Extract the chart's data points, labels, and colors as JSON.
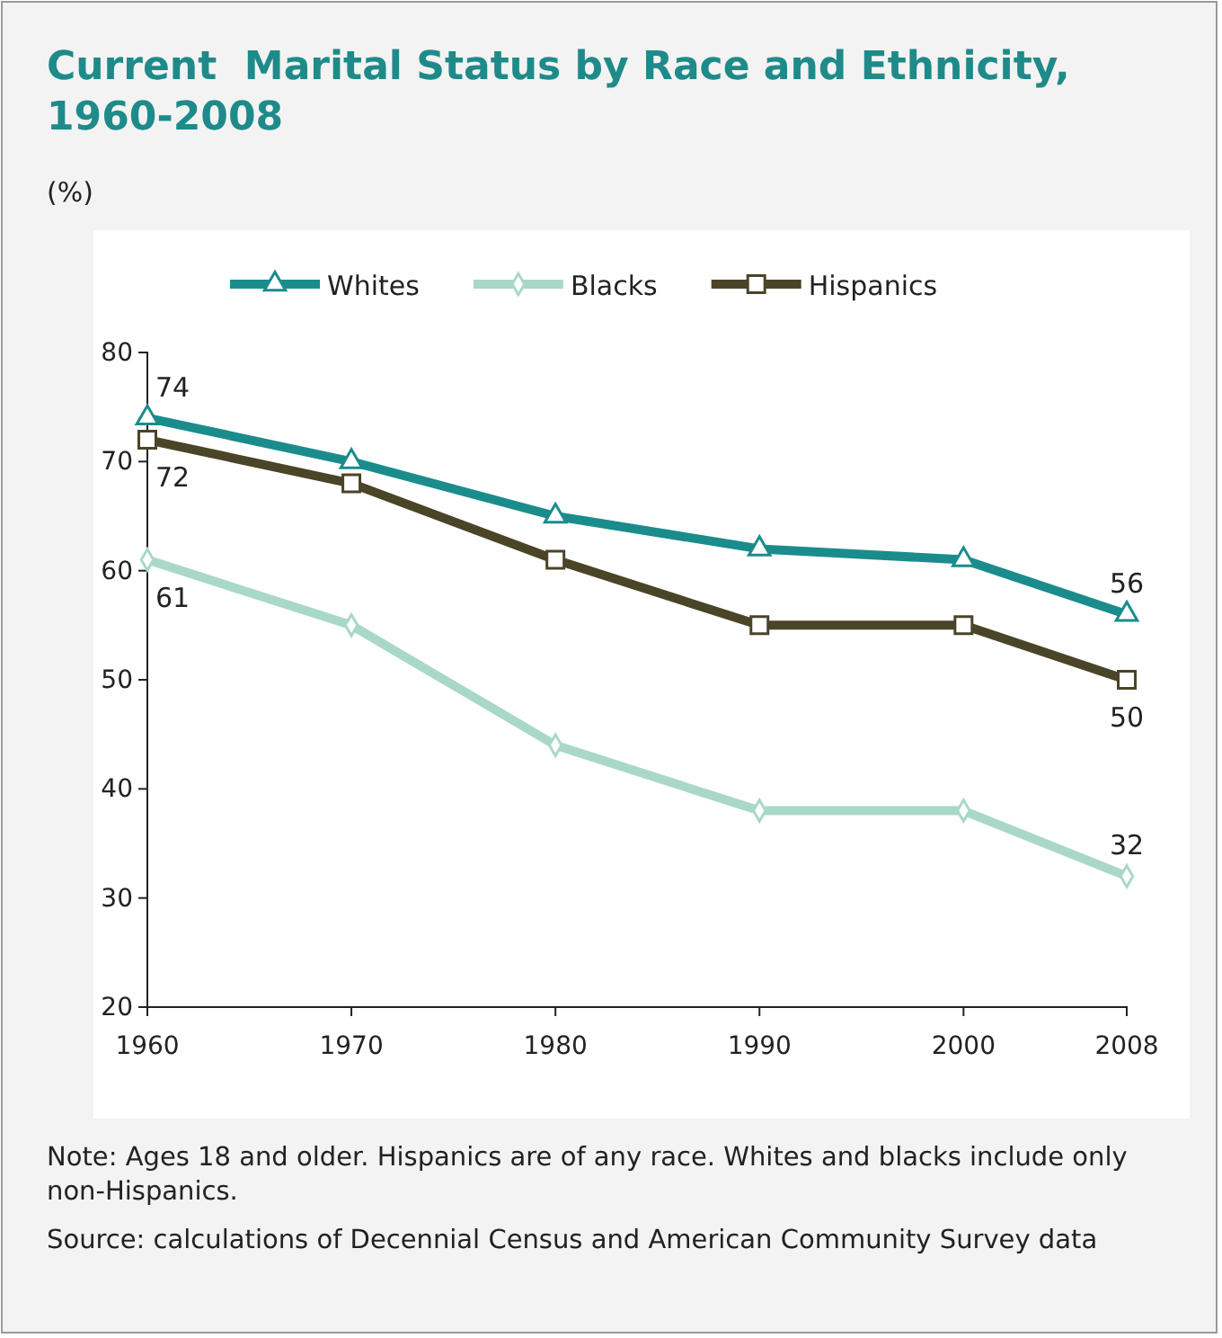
{
  "chart_data": {
    "type": "line",
    "title": "Current  Marital Status by Race and Ethnicity, 1960-2008",
    "ylabel": "(%)",
    "x": [
      1960,
      1970,
      1980,
      1990,
      2000,
      2008
    ],
    "series": [
      {
        "name": "Whites",
        "color": "#1b8c8c",
        "marker": "triangle",
        "values": [
          74,
          70,
          65,
          62,
          61,
          56
        ],
        "value_labels": [
          "74",
          null,
          null,
          null,
          null,
          "56"
        ]
      },
      {
        "name": "Blacks",
        "color": "#a9d8c8",
        "marker": "diamond",
        "values": [
          61,
          55,
          44,
          38,
          38,
          32
        ],
        "value_labels": [
          "61",
          null,
          null,
          null,
          null,
          "32"
        ]
      },
      {
        "name": "Hispanics",
        "color": "#4a4428",
        "marker": "square",
        "values": [
          72,
          68,
          61,
          55,
          55,
          50
        ],
        "value_labels": [
          "72",
          null,
          null,
          null,
          null,
          "50"
        ]
      }
    ],
    "xlim": [
      1960,
      2008
    ],
    "xticks": [
      1960,
      1970,
      1980,
      1990,
      2000,
      2008
    ],
    "ylim": [
      20,
      80
    ],
    "yticks": [
      20,
      30,
      40,
      50,
      60,
      70,
      80
    ],
    "grid": false,
    "legend": "top",
    "annotations": [
      "Note: Ages 18 and older. Hispanics are of any race. Whites and blacks include only non-Hispanics.",
      "Source: calculations of Decennial Census and American Community Survey data"
    ]
  }
}
